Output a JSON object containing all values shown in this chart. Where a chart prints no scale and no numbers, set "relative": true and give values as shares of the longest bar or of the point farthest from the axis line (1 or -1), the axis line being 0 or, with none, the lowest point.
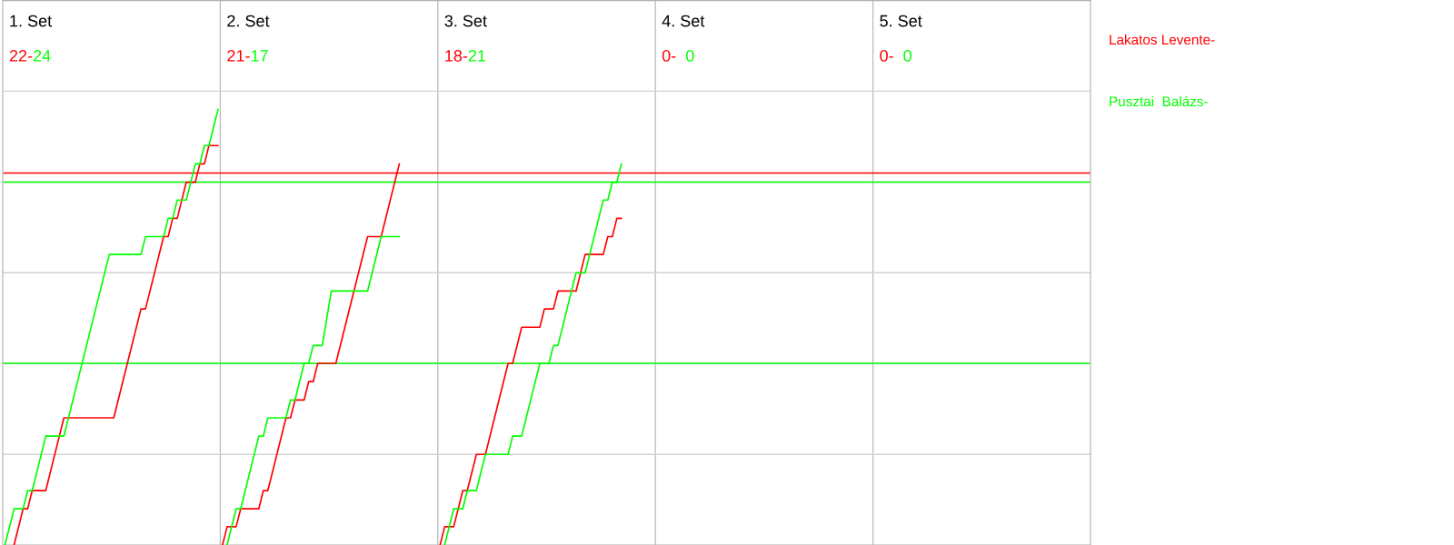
{
  "chart_data": {
    "type": "line",
    "relative": true,
    "marker": "none",
    "line_style": "solid",
    "categories": [
      null,
      null,
      null,
      null,
      null,
      null,
      null,
      null,
      null,
      null,
      null,
      null,
      null,
      null,
      null,
      null,
      null,
      null,
      null,
      null,
      null,
      null,
      null,
      null,
      null,
      null,
      null,
      null,
      null,
      null,
      null,
      null,
      null,
      null,
      null,
      null,
      null,
      null,
      null,
      null,
      null,
      null,
      null,
      null,
      null,
      null,
      null,
      null,
      null,
      null,
      null,
      null,
      null,
      null,
      null,
      null,
      null,
      null,
      null,
      null,
      null,
      null,
      null,
      null,
      null,
      null,
      null,
      null,
      null,
      null,
      null,
      null,
      null,
      null,
      null,
      null,
      null,
      null,
      null,
      null,
      null,
      null,
      null,
      null,
      null,
      null,
      null,
      null,
      null,
      null,
      null,
      null,
      null,
      null,
      null,
      null,
      null,
      null,
      null,
      null,
      null,
      null,
      null,
      null,
      null,
      null,
      null,
      null,
      null,
      null,
      null,
      null,
      null,
      null,
      null,
      null,
      null,
      null,
      null,
      null,
      null,
      null,
      null,
      null,
      null,
      null,
      null,
      null,
      null,
      null,
      null,
      null,
      null,
      null,
      null,
      null,
      null,
      null,
      null,
      null,
      null,
      null,
      null,
      null,
      null,
      null,
      null,
      null,
      null,
      null,
      null,
      null,
      null,
      null,
      null,
      null,
      null,
      null,
      null,
      null,
      null,
      null,
      null,
      null,
      null,
      null,
      null,
      null,
      null,
      null,
      null,
      null,
      null,
      null,
      null,
      null,
      null,
      null,
      null,
      null,
      null,
      null,
      null,
      null,
      null,
      null,
      null,
      null,
      null,
      null,
      null,
      null,
      null,
      null,
      null,
      null,
      null,
      null,
      null,
      null,
      null,
      null,
      null,
      null,
      null,
      null,
      null,
      null,
      null,
      null,
      null,
      null,
      null,
      null,
      null,
      null,
      null,
      null,
      null,
      null,
      null,
      null,
      null,
      null,
      null,
      null,
      null,
      null,
      null,
      null,
      null,
      null,
      null,
      null,
      null,
      null,
      null,
      null,
      null,
      null
    ],
    "annotations": [
      "1. Set",
      "22-24",
      "2. Set",
      "21-17",
      "3. Set",
      "18-21",
      "4. Set",
      "0-  0",
      "5. Set",
      "0-  0"
    ],
    "ref_lines": [
      {
        "axis": "y",
        "value": 0.208,
        "color": "#d3d3d3"
      },
      {
        "axis": "y",
        "value": 0.417,
        "color": "#d3d3d3"
      },
      {
        "axis": "y",
        "value": 0.625,
        "color": "#d3d3d3"
      },
      {
        "axis": "y",
        "value": 0.833,
        "color": "#d3d3d3"
      },
      {
        "axis": "y",
        "value": 1.042,
        "color": "#d3d3d3"
      },
      {
        "axis": "y",
        "value": 0.417,
        "color": "#00ff00"
      },
      {
        "axis": "y",
        "value": 0.833,
        "color": "#00ff00"
      },
      {
        "axis": "y",
        "value": 0.854,
        "color": "#ff0000"
      }
    ],
    "series": [
      {
        "name": "Lakatos Levente-",
        "color": "#ff0000",
        "values": [
          null,
          null,
          0,
          null,
          0.083,
          0.083,
          0.125,
          null,
          null,
          0.125,
          null,
          null,
          null,
          0.292,
          null,
          null,
          null,
          null,
          null,
          null,
          null,
          null,
          null,
          null,
          0.292,
          null,
          null,
          null,
          null,
          null,
          0.542,
          0.542,
          null,
          null,
          null,
          0.708,
          0.708,
          0.75,
          0.75,
          null,
          0.833,
          null,
          0.833,
          0.875,
          0.875,
          0.917,
          null,
          0.917,
          null,
          null,
          null,
          null,
          null,
          null,
          null,
          null,
          null,
          null,
          null,
          null,
          null,
          null,
          null,
          null,
          null,
          null,
          null,
          null,
          null,
          null,
          null,
          null,
          null,
          null,
          null,
          null,
          null,
          null,
          null,
          null,
          null,
          null,
          null,
          null,
          null,
          null,
          null,
          null,
          null,
          null,
          null,
          null,
          null,
          null,
          null,
          null,
          null,
          null,
          null,
          null,
          null,
          null,
          null,
          null,
          null,
          null,
          null,
          null,
          null,
          null,
          null,
          null,
          null,
          null,
          null,
          null,
          null,
          null,
          null,
          null,
          null,
          null,
          null,
          null,
          null,
          null,
          null,
          null,
          null,
          null,
          null,
          null,
          null,
          null,
          null,
          null,
          null,
          null,
          null,
          null,
          null,
          null,
          null,
          null,
          null,
          null,
          null,
          null,
          null,
          null,
          null,
          null,
          null,
          null,
          null,
          null,
          null,
          null,
          null,
          null,
          null,
          null,
          null,
          null,
          null,
          null,
          null,
          null,
          null,
          null,
          null,
          null,
          null,
          null,
          null,
          null,
          null,
          null,
          null,
          null,
          null,
          null,
          null,
          null,
          null,
          null,
          null,
          null,
          null,
          null,
          null,
          null,
          null,
          null,
          null,
          null,
          null,
          null,
          null,
          null,
          null,
          null,
          null,
          null,
          null,
          null,
          null,
          null,
          null,
          null,
          null,
          null,
          null,
          null,
          null,
          null,
          null,
          null,
          null,
          null,
          null,
          null,
          null,
          null,
          null,
          null,
          null,
          null,
          null,
          null,
          null,
          null,
          null,
          null,
          null,
          null,
          null,
          null,
          null,
          null
        ]
      },
      {
        "name": "Pusztai  Balázs-",
        "color": "#00ff00",
        "values": [
          0,
          null,
          0.083,
          null,
          0.083,
          0.125,
          0.125,
          null,
          null,
          0.25,
          null,
          null,
          null,
          0.25,
          null,
          null,
          null,
          null,
          null,
          null,
          null,
          null,
          null,
          0.667,
          null,
          null,
          null,
          null,
          null,
          null,
          0.667,
          0.708,
          null,
          null,
          null,
          0.708,
          0.75,
          0.75,
          0.792,
          null,
          0.792,
          null,
          0.875,
          0.875,
          0.917,
          0.917,
          null,
          1,
          null,
          null,
          null,
          null,
          null,
          null,
          null,
          null,
          null,
          null,
          null,
          null,
          null,
          null,
          null,
          null,
          null,
          null,
          null,
          null,
          null,
          null,
          null,
          null,
          null,
          null,
          null,
          null,
          null,
          null,
          null,
          null,
          null,
          null,
          null,
          null,
          null,
          null,
          null,
          null,
          null,
          null,
          null,
          null,
          null,
          null,
          null,
          null,
          null,
          null,
          null,
          null,
          null,
          null,
          null,
          null,
          null,
          null,
          null,
          null,
          null,
          null,
          null,
          null,
          null,
          null,
          null,
          null,
          null,
          null,
          null,
          null,
          null,
          null,
          null,
          null,
          null,
          null,
          null,
          null,
          null,
          null,
          null,
          null,
          null,
          null,
          null,
          null,
          null,
          null,
          null,
          null,
          null,
          null,
          null,
          null,
          null,
          null,
          null,
          null,
          null,
          null,
          null,
          null,
          null,
          null,
          null,
          null,
          null,
          null,
          null,
          null,
          null,
          null,
          null,
          null,
          null,
          null,
          null,
          null,
          null,
          null,
          null,
          null,
          null,
          null,
          null,
          null,
          null,
          null,
          null,
          null,
          null,
          null,
          null,
          null,
          null,
          null,
          null,
          null,
          null,
          null,
          null,
          null,
          null,
          null,
          null,
          null,
          null,
          null,
          null,
          null,
          null,
          null,
          null,
          null,
          null,
          null,
          null,
          null,
          null,
          null,
          null,
          null,
          null,
          null,
          null,
          null,
          null,
          null,
          null,
          null,
          null,
          null,
          null,
          null,
          null,
          null,
          null,
          null,
          null,
          null,
          null,
          null,
          null,
          null,
          null,
          null,
          null,
          null,
          null,
          null
        ]
      },
      {
        "color": "#ff0000",
        "values": [
          null,
          null,
          null,
          null,
          null,
          null,
          null,
          null,
          null,
          null,
          null,
          null,
          null,
          null,
          null,
          null,
          null,
          null,
          null,
          null,
          null,
          null,
          null,
          null,
          null,
          null,
          null,
          null,
          null,
          null,
          null,
          null,
          null,
          null,
          null,
          null,
          null,
          null,
          null,
          null,
          null,
          null,
          null,
          null,
          null,
          null,
          null,
          null,
          0,
          0.042,
          null,
          0.042,
          0.083,
          null,
          null,
          null,
          0.083,
          0.125,
          0.125,
          null,
          null,
          null,
          0.292,
          0.292,
          0.333,
          null,
          0.333,
          0.375,
          0.375,
          0.417,
          null,
          null,
          null,
          0.417,
          null,
          null,
          null,
          null,
          null,
          null,
          0.708,
          null,
          null,
          0.708,
          null,
          null,
          null,
          0.875,
          null,
          null,
          null,
          null,
          null,
          null,
          null,
          null,
          null,
          null,
          null,
          null,
          null,
          null,
          null,
          null,
          null,
          null,
          null,
          null,
          null,
          null,
          null,
          null,
          null,
          null,
          null,
          null,
          null,
          null,
          null,
          null,
          null,
          null,
          null,
          null,
          null,
          null,
          null,
          null,
          null,
          null,
          null,
          null,
          null,
          null,
          null,
          null,
          null,
          null,
          null,
          null,
          null,
          null,
          null,
          null,
          null,
          null,
          null,
          null,
          null,
          null,
          null,
          null,
          null,
          null,
          null,
          null,
          null,
          null,
          null,
          null,
          null,
          null,
          null,
          null,
          null,
          null,
          null,
          null,
          null,
          null,
          null,
          null,
          null,
          null,
          null,
          null,
          null,
          null,
          null,
          null,
          null,
          null,
          null,
          null,
          null,
          null,
          null,
          null,
          null,
          null,
          null,
          null,
          null,
          null,
          null,
          null,
          null,
          null,
          null,
          null,
          null,
          null,
          null,
          null,
          null,
          null,
          null,
          null,
          null,
          null,
          null,
          null,
          null,
          null,
          null,
          null,
          null,
          null,
          null,
          null,
          null,
          null,
          null,
          null,
          null,
          null,
          null,
          null,
          null,
          null,
          null,
          null,
          null,
          null,
          null,
          null,
          null,
          null,
          null,
          null
        ]
      },
      {
        "color": "#00ff00",
        "values": [
          null,
          null,
          null,
          null,
          null,
          null,
          null,
          null,
          null,
          null,
          null,
          null,
          null,
          null,
          null,
          null,
          null,
          null,
          null,
          null,
          null,
          null,
          null,
          null,
          null,
          null,
          null,
          null,
          null,
          null,
          null,
          null,
          null,
          null,
          null,
          null,
          null,
          null,
          null,
          null,
          null,
          null,
          null,
          null,
          null,
          null,
          null,
          null,
          null,
          0,
          null,
          0.083,
          0.083,
          null,
          null,
          null,
          0.25,
          0.25,
          0.292,
          null,
          null,
          null,
          0.292,
          0.333,
          0.333,
          null,
          0.417,
          0.417,
          0.458,
          null,
          0.458,
          null,
          0.583,
          null,
          null,
          null,
          null,
          null,
          null,
          null,
          0.583,
          null,
          null,
          0.708,
          null,
          null,
          null,
          0.708,
          null,
          null,
          null,
          null,
          null,
          null,
          null,
          null,
          null,
          null,
          null,
          null,
          null,
          null,
          null,
          null,
          null,
          null,
          null,
          null,
          null,
          null,
          null,
          null,
          null,
          null,
          null,
          null,
          null,
          null,
          null,
          null,
          null,
          null,
          null,
          null,
          null,
          null,
          null,
          null,
          null,
          null,
          null,
          null,
          null,
          null,
          null,
          null,
          null,
          null,
          null,
          null,
          null,
          null,
          null,
          null,
          null,
          null,
          null,
          null,
          null,
          null,
          null,
          null,
          null,
          null,
          null,
          null,
          null,
          null,
          null,
          null,
          null,
          null,
          null,
          null,
          null,
          null,
          null,
          null,
          null,
          null,
          null,
          null,
          null,
          null,
          null,
          null,
          null,
          null,
          null,
          null,
          null,
          null,
          null,
          null,
          null,
          null,
          null,
          null,
          null,
          null,
          null,
          null,
          null,
          null,
          null,
          null,
          null,
          null,
          null,
          null,
          null,
          null,
          null,
          null,
          null,
          null,
          null,
          null,
          null,
          null,
          null,
          null,
          null,
          null,
          null,
          null,
          null,
          null,
          null,
          null,
          null,
          null,
          null,
          null,
          null,
          null,
          null,
          null,
          null,
          null,
          null,
          null,
          null,
          null,
          null,
          null,
          null,
          null,
          null,
          null
        ]
      },
      {
        "color": "#ff0000",
        "values": [
          null,
          null,
          null,
          null,
          null,
          null,
          null,
          null,
          null,
          null,
          null,
          null,
          null,
          null,
          null,
          null,
          null,
          null,
          null,
          null,
          null,
          null,
          null,
          null,
          null,
          null,
          null,
          null,
          null,
          null,
          null,
          null,
          null,
          null,
          null,
          null,
          null,
          null,
          null,
          null,
          null,
          null,
          null,
          null,
          null,
          null,
          null,
          null,
          null,
          null,
          null,
          null,
          null,
          null,
          null,
          null,
          null,
          null,
          null,
          null,
          null,
          null,
          null,
          null,
          null,
          null,
          null,
          null,
          null,
          null,
          null,
          null,
          null,
          null,
          null,
          null,
          null,
          null,
          null,
          null,
          null,
          null,
          null,
          null,
          null,
          null,
          null,
          null,
          null,
          null,
          null,
          null,
          null,
          null,
          null,
          null,
          0,
          0.042,
          null,
          0.042,
          null,
          0.125,
          0.125,
          null,
          0.208,
          null,
          0.208,
          null,
          null,
          null,
          null,
          0.417,
          0.417,
          null,
          0.5,
          null,
          null,
          null,
          0.5,
          0.542,
          null,
          0.542,
          0.583,
          null,
          null,
          null,
          0.583,
          null,
          0.667,
          null,
          null,
          null,
          0.667,
          0.708,
          0.708,
          0.75,
          0.75,
          null,
          null,
          null,
          null,
          null,
          null,
          null,
          null,
          null,
          null,
          null,
          null,
          null,
          null,
          null,
          null,
          null,
          null,
          null,
          null,
          null,
          null,
          null,
          null,
          null,
          null,
          null,
          null,
          null,
          null,
          null,
          null,
          null,
          null,
          null,
          null,
          null,
          null,
          null,
          null,
          null,
          null,
          null,
          null,
          null,
          null,
          null,
          null,
          null,
          null,
          null,
          null,
          null,
          null,
          null,
          null,
          null,
          null,
          null,
          null,
          null,
          null,
          null,
          null,
          null,
          null,
          null,
          null,
          null,
          null,
          null,
          null,
          null,
          null,
          null,
          null,
          null,
          null,
          null,
          null,
          null,
          null,
          null,
          null,
          null,
          null,
          null,
          null,
          null,
          null,
          null,
          null,
          null,
          null,
          null,
          null,
          null,
          null,
          null,
          null,
          null,
          null,
          null
        ]
      },
      {
        "color": "#00ff00",
        "values": [
          null,
          null,
          null,
          null,
          null,
          null,
          null,
          null,
          null,
          null,
          null,
          null,
          null,
          null,
          null,
          null,
          null,
          null,
          null,
          null,
          null,
          null,
          null,
          null,
          null,
          null,
          null,
          null,
          null,
          null,
          null,
          null,
          null,
          null,
          null,
          null,
          null,
          null,
          null,
          null,
          null,
          null,
          null,
          null,
          null,
          null,
          null,
          null,
          null,
          null,
          null,
          null,
          null,
          null,
          null,
          null,
          null,
          null,
          null,
          null,
          null,
          null,
          null,
          null,
          null,
          null,
          null,
          null,
          null,
          null,
          null,
          null,
          null,
          null,
          null,
          null,
          null,
          null,
          null,
          null,
          null,
          null,
          null,
          null,
          null,
          null,
          null,
          null,
          null,
          null,
          null,
          null,
          null,
          null,
          null,
          null,
          null,
          0,
          null,
          0.083,
          null,
          0.083,
          0.125,
          null,
          0.125,
          null,
          0.208,
          null,
          null,
          null,
          null,
          0.208,
          0.25,
          null,
          0.25,
          null,
          null,
          null,
          0.417,
          null,
          0.417,
          0.458,
          0.458,
          null,
          null,
          null,
          0.625,
          null,
          0.625,
          null,
          null,
          null,
          0.792,
          0.792,
          0.833,
          0.833,
          0.875,
          null,
          null,
          null,
          null,
          null,
          null,
          null,
          null,
          null,
          null,
          null,
          null,
          null,
          null,
          null,
          null,
          null,
          null,
          null,
          null,
          null,
          null,
          null,
          null,
          null,
          null,
          null,
          null,
          null,
          null,
          null,
          null,
          null,
          null,
          null,
          null,
          null,
          null,
          null,
          null,
          null,
          null,
          null,
          null,
          null,
          null,
          null,
          null,
          null,
          null,
          null,
          null,
          null,
          null,
          null,
          null,
          null,
          null,
          null,
          null,
          null,
          null,
          null,
          null,
          null,
          null,
          null,
          null,
          null,
          null,
          null,
          null,
          null,
          null,
          null,
          null,
          null,
          null,
          null,
          null,
          null,
          null,
          null,
          null,
          null,
          null,
          null,
          null,
          null,
          null,
          null,
          null,
          null,
          null,
          null,
          null,
          null,
          null,
          null,
          null,
          null,
          null,
          null
        ]
      }
    ]
  }
}
